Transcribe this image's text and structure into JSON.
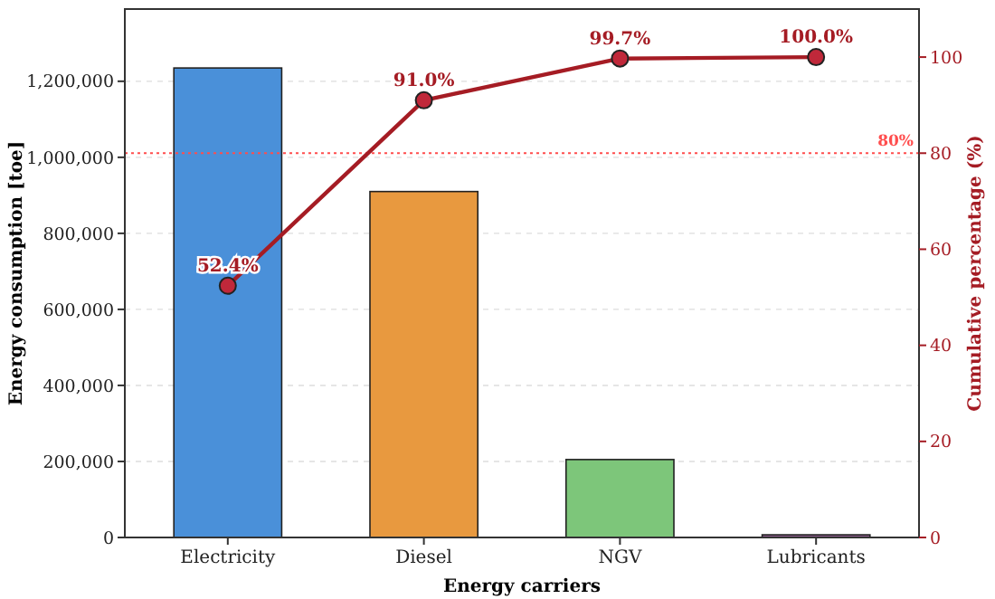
{
  "chart_data": {
    "type": "bar",
    "xlabel": "Energy carriers",
    "ylabel": "Energy consumption [toe]",
    "y2label": "Cumulative percentage (%)",
    "categories": [
      "Electricity",
      "Diesel",
      "NGV",
      "Lubricants"
    ],
    "series": [
      {
        "values": [
          1235000,
          910000,
          205000,
          7000
        ],
        "colors": [
          "#4a90d9",
          "#e8993f",
          "#7dc67a",
          "#8e5c8e"
        ]
      },
      {
        "type": "line",
        "axis": "y2",
        "color": "#a51c24",
        "values": [
          52.4,
          91.0,
          99.7,
          100.0
        ],
        "value_labels": [
          "52.4%",
          "91.0%",
          "99.7%",
          "100.0%"
        ],
        "marker": "circle"
      }
    ],
    "ylim": [
      0,
      1390000
    ],
    "yticks": [
      {
        "value": 0,
        "label": "0"
      },
      {
        "value": 200000,
        "label": "200,000"
      },
      {
        "value": 400000,
        "label": "400,000"
      },
      {
        "value": 600000,
        "label": "600,000"
      },
      {
        "value": 800000,
        "label": "800,000"
      },
      {
        "value": 1000000,
        "label": "1,000,000"
      },
      {
        "value": 1200000,
        "label": "1,200,000"
      }
    ],
    "y2lim": [
      0,
      110
    ],
    "y2ticks": [
      0,
      20,
      40,
      60,
      80,
      100
    ],
    "ref_lines": [
      {
        "axis": "y2",
        "value": 80,
        "label": "80%",
        "color": "#ff4d4d",
        "line_style": "dotted"
      }
    ],
    "grid": "y"
  }
}
